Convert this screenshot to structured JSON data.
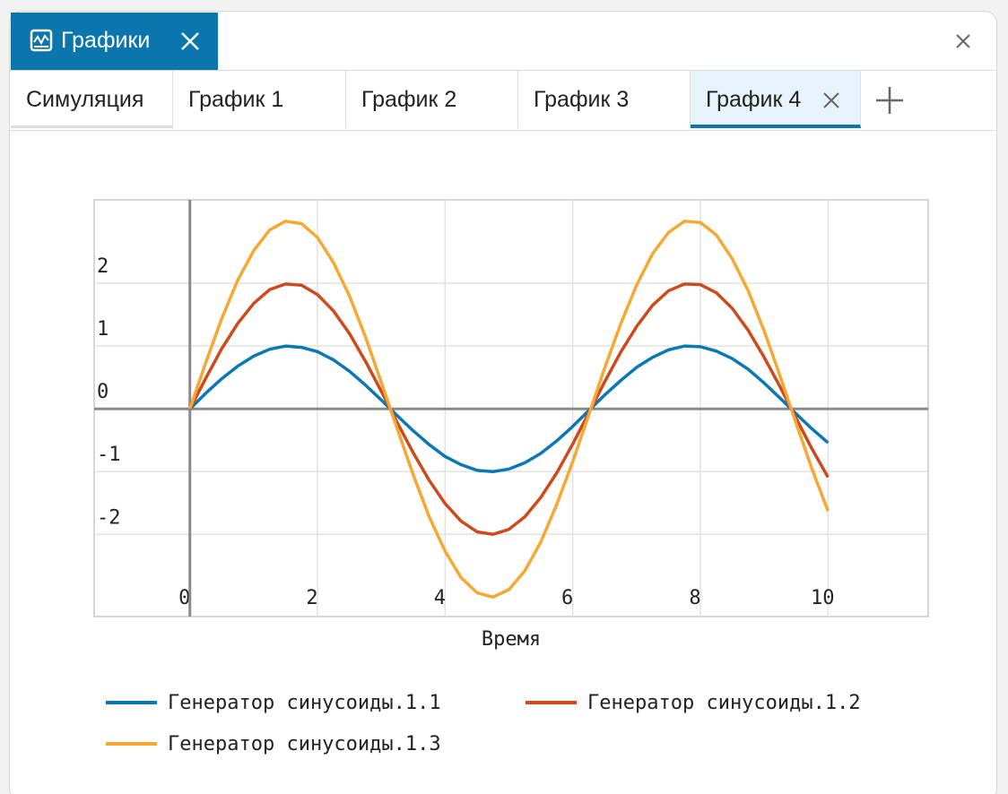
{
  "window": {
    "title": "Графики"
  },
  "tabs": [
    "Симуляция",
    "График 1",
    "График 2",
    "График 3",
    "График 4"
  ],
  "chart_data": {
    "type": "line",
    "xlabel": "Время",
    "x": [
      0,
      0.25,
      0.5,
      0.75,
      1,
      1.25,
      1.5,
      1.75,
      2,
      2.25,
      2.5,
      2.75,
      3,
      3.25,
      3.5,
      3.75,
      4,
      4.25,
      4.5,
      4.75,
      5,
      5.25,
      5.5,
      5.75,
      6,
      6.25,
      6.5,
      6.75,
      7,
      7.25,
      7.5,
      7.75,
      8,
      8.25,
      8.5,
      8.75,
      9,
      9.25,
      9.5,
      9.75,
      10
    ],
    "series": [
      {
        "name": "Генератор синусоиды.1.1",
        "color": "#0a78b4",
        "values": [
          0,
          0.25,
          0.48,
          0.68,
          0.84,
          0.95,
          1.0,
          0.98,
          0.91,
          0.78,
          0.6,
          0.38,
          0.14,
          -0.11,
          -0.35,
          -0.57,
          -0.76,
          -0.89,
          -0.98,
          -1.0,
          -0.96,
          -0.86,
          -0.71,
          -0.51,
          -0.28,
          -0.03,
          0.22,
          0.45,
          0.66,
          0.82,
          0.94,
          1.0,
          0.99,
          0.92,
          0.8,
          0.63,
          0.41,
          0.17,
          -0.08,
          -0.32,
          -0.54
        ]
      },
      {
        "name": "Генератор синусоиды.1.2",
        "color": "#cc4a1c",
        "values": [
          0,
          0.49,
          0.96,
          1.36,
          1.68,
          1.9,
          1.99,
          1.97,
          1.82,
          1.56,
          1.2,
          0.76,
          0.28,
          -0.22,
          -0.7,
          -1.14,
          -1.51,
          -1.79,
          -1.96,
          -2.0,
          -1.92,
          -1.72,
          -1.41,
          -1.02,
          -0.56,
          -0.07,
          0.43,
          0.9,
          1.31,
          1.65,
          1.88,
          1.99,
          1.98,
          1.85,
          1.6,
          1.25,
          0.82,
          0.35,
          -0.15,
          -0.64,
          -1.09
        ]
      },
      {
        "name": "Генератор синусоиды.1.3",
        "color": "#f5a833",
        "values": [
          0,
          0.74,
          1.44,
          2.05,
          2.52,
          2.85,
          2.99,
          2.95,
          2.73,
          2.33,
          1.8,
          1.15,
          0.42,
          -0.32,
          -1.05,
          -1.72,
          -2.27,
          -2.69,
          -2.93,
          -3.0,
          -2.88,
          -2.58,
          -2.12,
          -1.52,
          -0.84,
          -0.1,
          0.65,
          1.35,
          1.97,
          2.47,
          2.81,
          2.99,
          2.97,
          2.77,
          2.39,
          1.88,
          1.24,
          0.52,
          -0.23,
          -0.96,
          -1.63
        ]
      }
    ],
    "xlim": [
      -1.5,
      11.57
    ],
    "ylim": [
      -3.31,
      3.33
    ],
    "xticks": [
      0,
      2,
      4,
      6,
      8,
      10
    ],
    "yticks": [
      -2,
      -1,
      0,
      1,
      2
    ],
    "grid": true
  }
}
